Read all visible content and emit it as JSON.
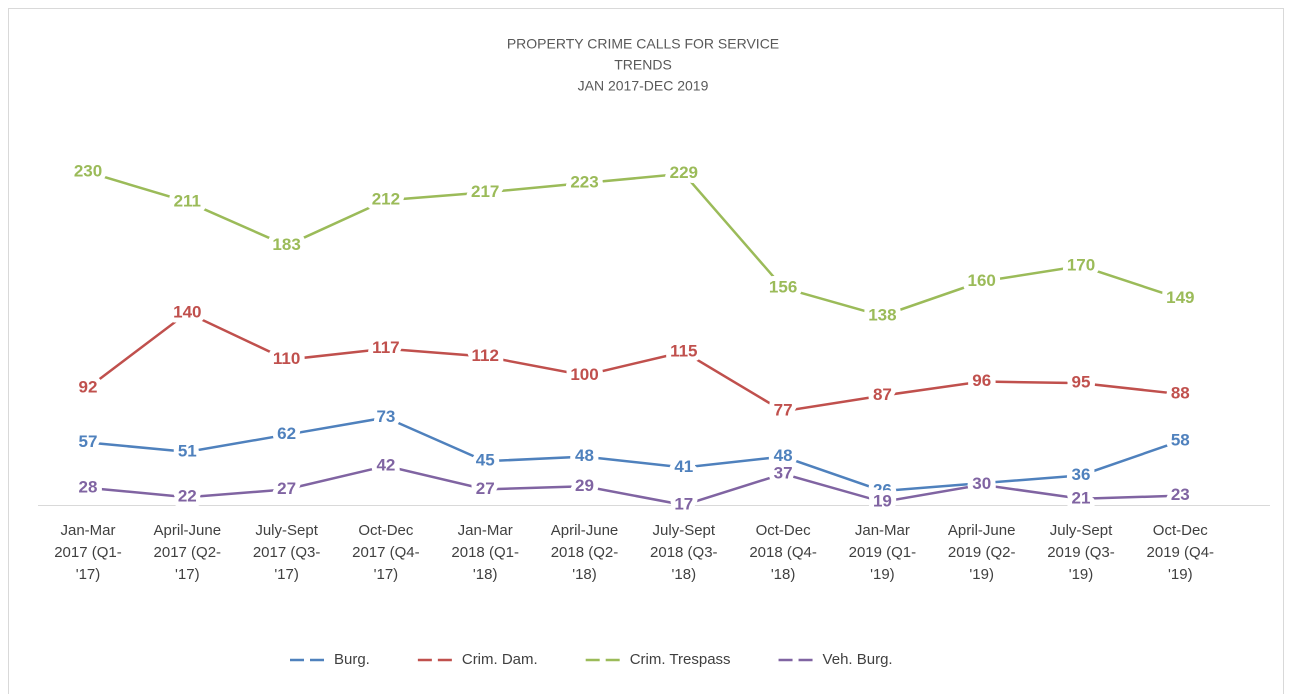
{
  "chart_data": {
    "type": "line",
    "title": [
      "PROPERTY CRIME CALLS FOR SERVICE",
      "TRENDS",
      "JAN 2017-DEC 2019"
    ],
    "categories": [
      "Jan-Mar 2017 (Q1-'17)",
      "April-June 2017 (Q2-'17)",
      "July-Sept 2017 (Q3-'17)",
      "Oct-Dec 2017 (Q4-'17)",
      "Jan-Mar 2018 (Q1-'18)",
      "April-June 2018 (Q2-'18)",
      "July-Sept 2018 (Q3-'18)",
      "Oct-Dec 2018 (Q4-'18)",
      "Jan-Mar 2019 (Q1-'19)",
      "April-June 2019 (Q2-'19)",
      "July-Sept 2019 (Q3-'19)",
      "Oct-Dec 2019 (Q4-'19)"
    ],
    "series": [
      {
        "name": "Burg.",
        "color": "#4f81bd",
        "values": [
          57,
          51,
          62,
          73,
          45,
          48,
          41,
          48,
          26,
          31,
          36,
          58
        ]
      },
      {
        "name": "Crim. Dam.",
        "color": "#c0504d",
        "values": [
          92,
          140,
          110,
          117,
          112,
          100,
          115,
          77,
          87,
          96,
          95,
          88
        ]
      },
      {
        "name": "Crim. Trespass",
        "color": "#9bbb59",
        "values": [
          230,
          211,
          183,
          212,
          217,
          223,
          229,
          156,
          138,
          160,
          170,
          149
        ]
      },
      {
        "name": "Veh. Burg.",
        "color": "#8064a2",
        "values": [
          28,
          22,
          27,
          42,
          27,
          29,
          17,
          37,
          19,
          30,
          21,
          23
        ]
      }
    ],
    "legend": "bottom"
  }
}
